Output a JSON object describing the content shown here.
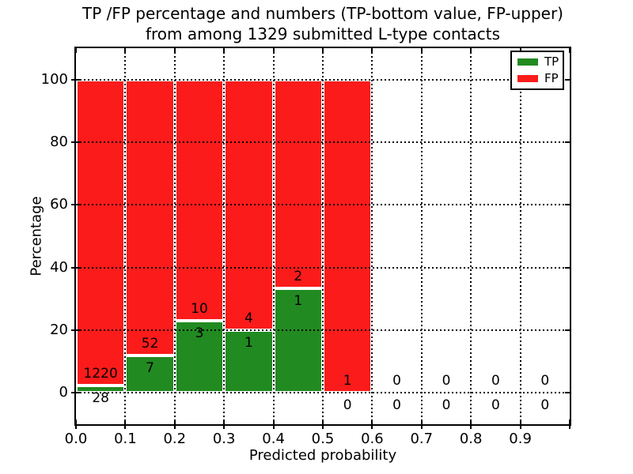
{
  "title": {
    "line1": "TP /FP percentage and numbers (TP-bottom value, FP-upper)",
    "line2": "from among 1329 submitted L-type contacts"
  },
  "axes": {
    "xlabel": "Predicted probability",
    "ylabel": "Percentage"
  },
  "legend": {
    "items": [
      {
        "label": "TP",
        "color": "#218a21"
      },
      {
        "label": "FP",
        "color": "#fb1b1b"
      }
    ]
  },
  "chart_data": {
    "type": "bar",
    "stacked": true,
    "title": "TP /FP percentage and numbers (TP-bottom value, FP-upper) from among 1329 submitted L-type contacts",
    "xlabel": "Predicted probability",
    "ylabel": "Percentage",
    "xlim": [
      0.0,
      1.0
    ],
    "ylim": [
      -10,
      110
    ],
    "xticks": [
      "0.0",
      "0.1",
      "0.2",
      "0.3",
      "0.4",
      "0.5",
      "0.6",
      "0.7",
      "0.8",
      "0.9"
    ],
    "yticks": [
      0,
      20,
      40,
      60,
      80,
      100
    ],
    "grid": "dotted-black",
    "bar_edge_color": "#ffffff",
    "legend_position": "upper right",
    "bin_width": 0.1,
    "categories": [
      "0.0-0.1",
      "0.1-0.2",
      "0.2-0.3",
      "0.3-0.4",
      "0.4-0.5",
      "0.5-0.6",
      "0.6-0.7",
      "0.7-0.8",
      "0.8-0.9",
      "0.9-1.0"
    ],
    "series": [
      {
        "name": "TP",
        "color": "#218a21",
        "counts": [
          28,
          7,
          3,
          1,
          1,
          0,
          0,
          0,
          0,
          0
        ],
        "pct": [
          2.2,
          11.9,
          23.1,
          20.0,
          33.3,
          0.0,
          0,
          0,
          0,
          0
        ]
      },
      {
        "name": "FP",
        "color": "#fb1b1b",
        "counts": [
          1220,
          52,
          10,
          4,
          2,
          1,
          0,
          0,
          0,
          0
        ],
        "pct": [
          97.8,
          88.1,
          76.9,
          80.0,
          66.7,
          100.0,
          0,
          0,
          0,
          0
        ]
      }
    ]
  }
}
